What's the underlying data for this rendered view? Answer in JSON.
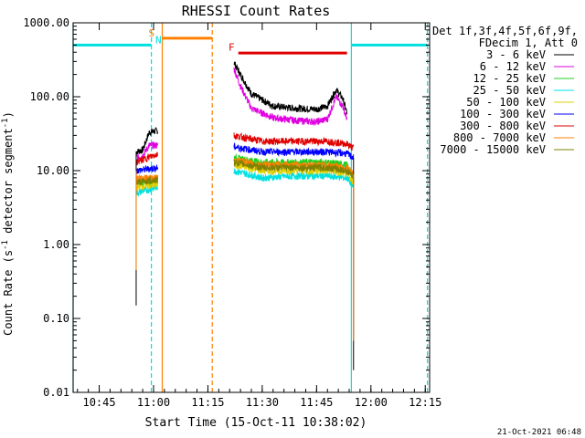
{
  "chart_data": {
    "type": "line",
    "title": "RHESSI Count Rates",
    "xlabel": "Start Time (15-Oct-11 10:38:02)",
    "ylabel": "Count Rate (s",
    "ylabel_sup1": "-1",
    "ylabel_mid": " detector segment",
    "ylabel_sup2": "-1",
    "ylabel_end": ")",
    "y_scale": "log",
    "ylim": [
      0.01,
      1000
    ],
    "xlim_minutes": [
      10.63,
      12.27
    ],
    "x_tick_labels": [
      "10:45",
      "11:00",
      "11:15",
      "11:30",
      "11:45",
      "12:00",
      "12:15"
    ],
    "x_tick_minutes": [
      10.75,
      11.0,
      11.25,
      11.5,
      11.75,
      12.0,
      12.25
    ],
    "y_tick_labels": [
      "1000.00",
      "100.00",
      "10.00",
      "1.00",
      "0.10",
      "0.01"
    ],
    "y_tick_values": [
      1000,
      100,
      10,
      1,
      0.1,
      0.01
    ],
    "legend": {
      "header1": "Det 1f,3f,4f,5f,6f,9f,",
      "header2": "FDecim 1, Att 0",
      "placement": "right"
    },
    "series": [
      {
        "name": "3 - 6 keV",
        "color": "#000000",
        "values": [
          [
            10.92,
            18
          ],
          [
            10.95,
            19
          ],
          [
            10.98,
            33
          ],
          [
            11.02,
            35
          ],
          [
            11.37,
            290
          ],
          [
            11.4,
            200
          ],
          [
            11.45,
            110
          ],
          [
            11.55,
            75
          ],
          [
            11.65,
            70
          ],
          [
            11.75,
            68
          ],
          [
            11.8,
            75
          ],
          [
            11.84,
            125
          ],
          [
            11.87,
            95
          ],
          [
            11.89,
            60
          ]
        ]
      },
      {
        "name": "6 - 12 keV",
        "color": "#e000e0",
        "values": [
          [
            10.92,
            15
          ],
          [
            10.95,
            16
          ],
          [
            10.98,
            22
          ],
          [
            11.02,
            22
          ],
          [
            11.37,
            240
          ],
          [
            11.4,
            140
          ],
          [
            11.45,
            70
          ],
          [
            11.55,
            52
          ],
          [
            11.65,
            48
          ],
          [
            11.75,
            46
          ],
          [
            11.8,
            50
          ],
          [
            11.84,
            100
          ],
          [
            11.87,
            75
          ],
          [
            11.89,
            50
          ]
        ]
      },
      {
        "name": "12 - 25 keV",
        "color": "#20d020",
        "values": [
          [
            10.92,
            7
          ],
          [
            11.02,
            7
          ],
          [
            11.37,
            15
          ],
          [
            11.5,
            13
          ],
          [
            11.65,
            13
          ],
          [
            11.8,
            13
          ],
          [
            11.89,
            12
          ],
          [
            11.92,
            8
          ]
        ]
      },
      {
        "name": "25 - 50 keV",
        "color": "#00e0e0",
        "values": [
          [
            10.92,
            5
          ],
          [
            11.02,
            6
          ],
          [
            11.37,
            10
          ],
          [
            11.5,
            8
          ],
          [
            11.65,
            8.5
          ],
          [
            11.8,
            8.5
          ],
          [
            11.89,
            8
          ],
          [
            11.92,
            6
          ]
        ]
      },
      {
        "name": "50 - 100 keV",
        "color": "#e0d000",
        "values": [
          [
            10.92,
            6
          ],
          [
            11.02,
            6.5
          ],
          [
            11.37,
            12
          ],
          [
            11.5,
            10
          ],
          [
            11.65,
            10
          ],
          [
            11.8,
            10
          ],
          [
            11.89,
            9
          ],
          [
            11.92,
            7
          ]
        ]
      },
      {
        "name": "100 - 300 keV",
        "color": "#0000ff",
        "values": [
          [
            10.92,
            10
          ],
          [
            11.02,
            11
          ],
          [
            11.37,
            21
          ],
          [
            11.5,
            18
          ],
          [
            11.65,
            18
          ],
          [
            11.8,
            18
          ],
          [
            11.89,
            17
          ],
          [
            11.92,
            15
          ]
        ]
      },
      {
        "name": "300 - 800 keV",
        "color": "#e00000",
        "values": [
          [
            10.92,
            13
          ],
          [
            11.02,
            17
          ],
          [
            11.37,
            30
          ],
          [
            11.5,
            25
          ],
          [
            11.65,
            25
          ],
          [
            11.8,
            25
          ],
          [
            11.89,
            23
          ],
          [
            11.92,
            20
          ]
        ]
      },
      {
        "name": "800 - 7000 keV",
        "color": "#ff8000",
        "values": [
          [
            10.92,
            8
          ],
          [
            11.02,
            8
          ],
          [
            11.37,
            14
          ],
          [
            11.5,
            12
          ],
          [
            11.65,
            12
          ],
          [
            11.8,
            12
          ],
          [
            11.89,
            11
          ],
          [
            11.92,
            9
          ]
        ]
      },
      {
        "name": "7000 - 15000 keV",
        "color": "#808000",
        "values": [
          [
            10.92,
            7
          ],
          [
            11.02,
            7.5
          ],
          [
            11.37,
            13
          ],
          [
            11.5,
            11
          ],
          [
            11.65,
            11
          ],
          [
            11.8,
            11
          ],
          [
            11.89,
            10
          ],
          [
            11.92,
            8
          ]
        ]
      }
    ],
    "annotations": [
      {
        "label": "N",
        "minute": 11.0,
        "color": "#00e0e0"
      },
      {
        "label": "S",
        "minute": 11.04,
        "color": "#ff8000"
      },
      {
        "label": "F",
        "minute": 11.37,
        "color": "#e00000"
      }
    ],
    "eclipse_color": "#00e0e0",
    "saa_color": "#ff8000",
    "flare_color": "#e00000"
  },
  "footer_date": "21-Oct-2021 06:48"
}
